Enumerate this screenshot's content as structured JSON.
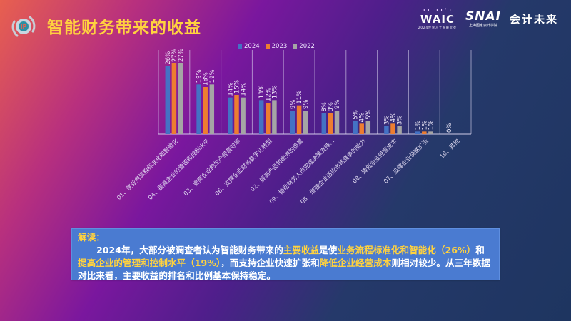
{
  "header": {
    "title": "智能财务带来的收益",
    "icon": "target-badge-icon",
    "logos": {
      "waic": "WAIC",
      "waic_sub": "2024世界人工智能大会",
      "snai": "SNAI",
      "snai_sub": "上海国家会计学院",
      "kuaiji": "会计未来"
    }
  },
  "colors": {
    "title": "#ffd23f",
    "series_2024": "#4472c4",
    "series_2023": "#ed7d31",
    "series_2022": "#a5a5a5",
    "note_bg": "#4a7bd1",
    "highlight": "#ffd23f"
  },
  "chart_data": {
    "type": "bar",
    "title": "智能财务带来的收益",
    "xlabel": "",
    "ylabel": "",
    "ylim": [
      0,
      30
    ],
    "grid": false,
    "legend_position": "top-center",
    "categories": [
      "01、使业务流程标准化和智能化",
      "04、提高企业的管理和控制水平",
      "03、提高企业的生产经营效率",
      "06、支撑企业财务数字化转型",
      "02、提高产品和服务的质量",
      "09、协助财务人员完成决策支持...",
      "05、增强企业适应市场竞争的能力",
      "08、降低企业经营成本",
      "07、支撑企业快速扩张",
      "10、其他"
    ],
    "series": [
      {
        "name": "2024",
        "values": [
          26,
          19,
          14,
          13,
          9,
          8,
          5,
          3,
          1,
          0
        ]
      },
      {
        "name": "2023",
        "values": [
          27,
          18,
          15,
          12,
          11,
          8,
          4,
          4,
          1,
          null
        ]
      },
      {
        "name": "2022",
        "values": [
          27,
          19,
          14,
          13,
          9,
          9,
          5,
          3,
          1,
          null
        ]
      }
    ],
    "value_suffix": "%"
  },
  "note": {
    "label": "解读：",
    "p1_a": "2024年，大部分被调查者认为智能财务带来的",
    "p1_hl1": "主要收益",
    "p1_b": "是使",
    "p1_hl2": "业务流程标准化和智能化（26%）",
    "p1_c": "和",
    "p1_hl3": "提高企业的管理和控制水平（19%）",
    "p1_d": "，而支持企业快速扩张和",
    "p1_hl4": "降低企业经营成本",
    "p1_e": "则相对较少。从三年数据对比来看，主要收益的排名和比例基本保持稳定。"
  }
}
